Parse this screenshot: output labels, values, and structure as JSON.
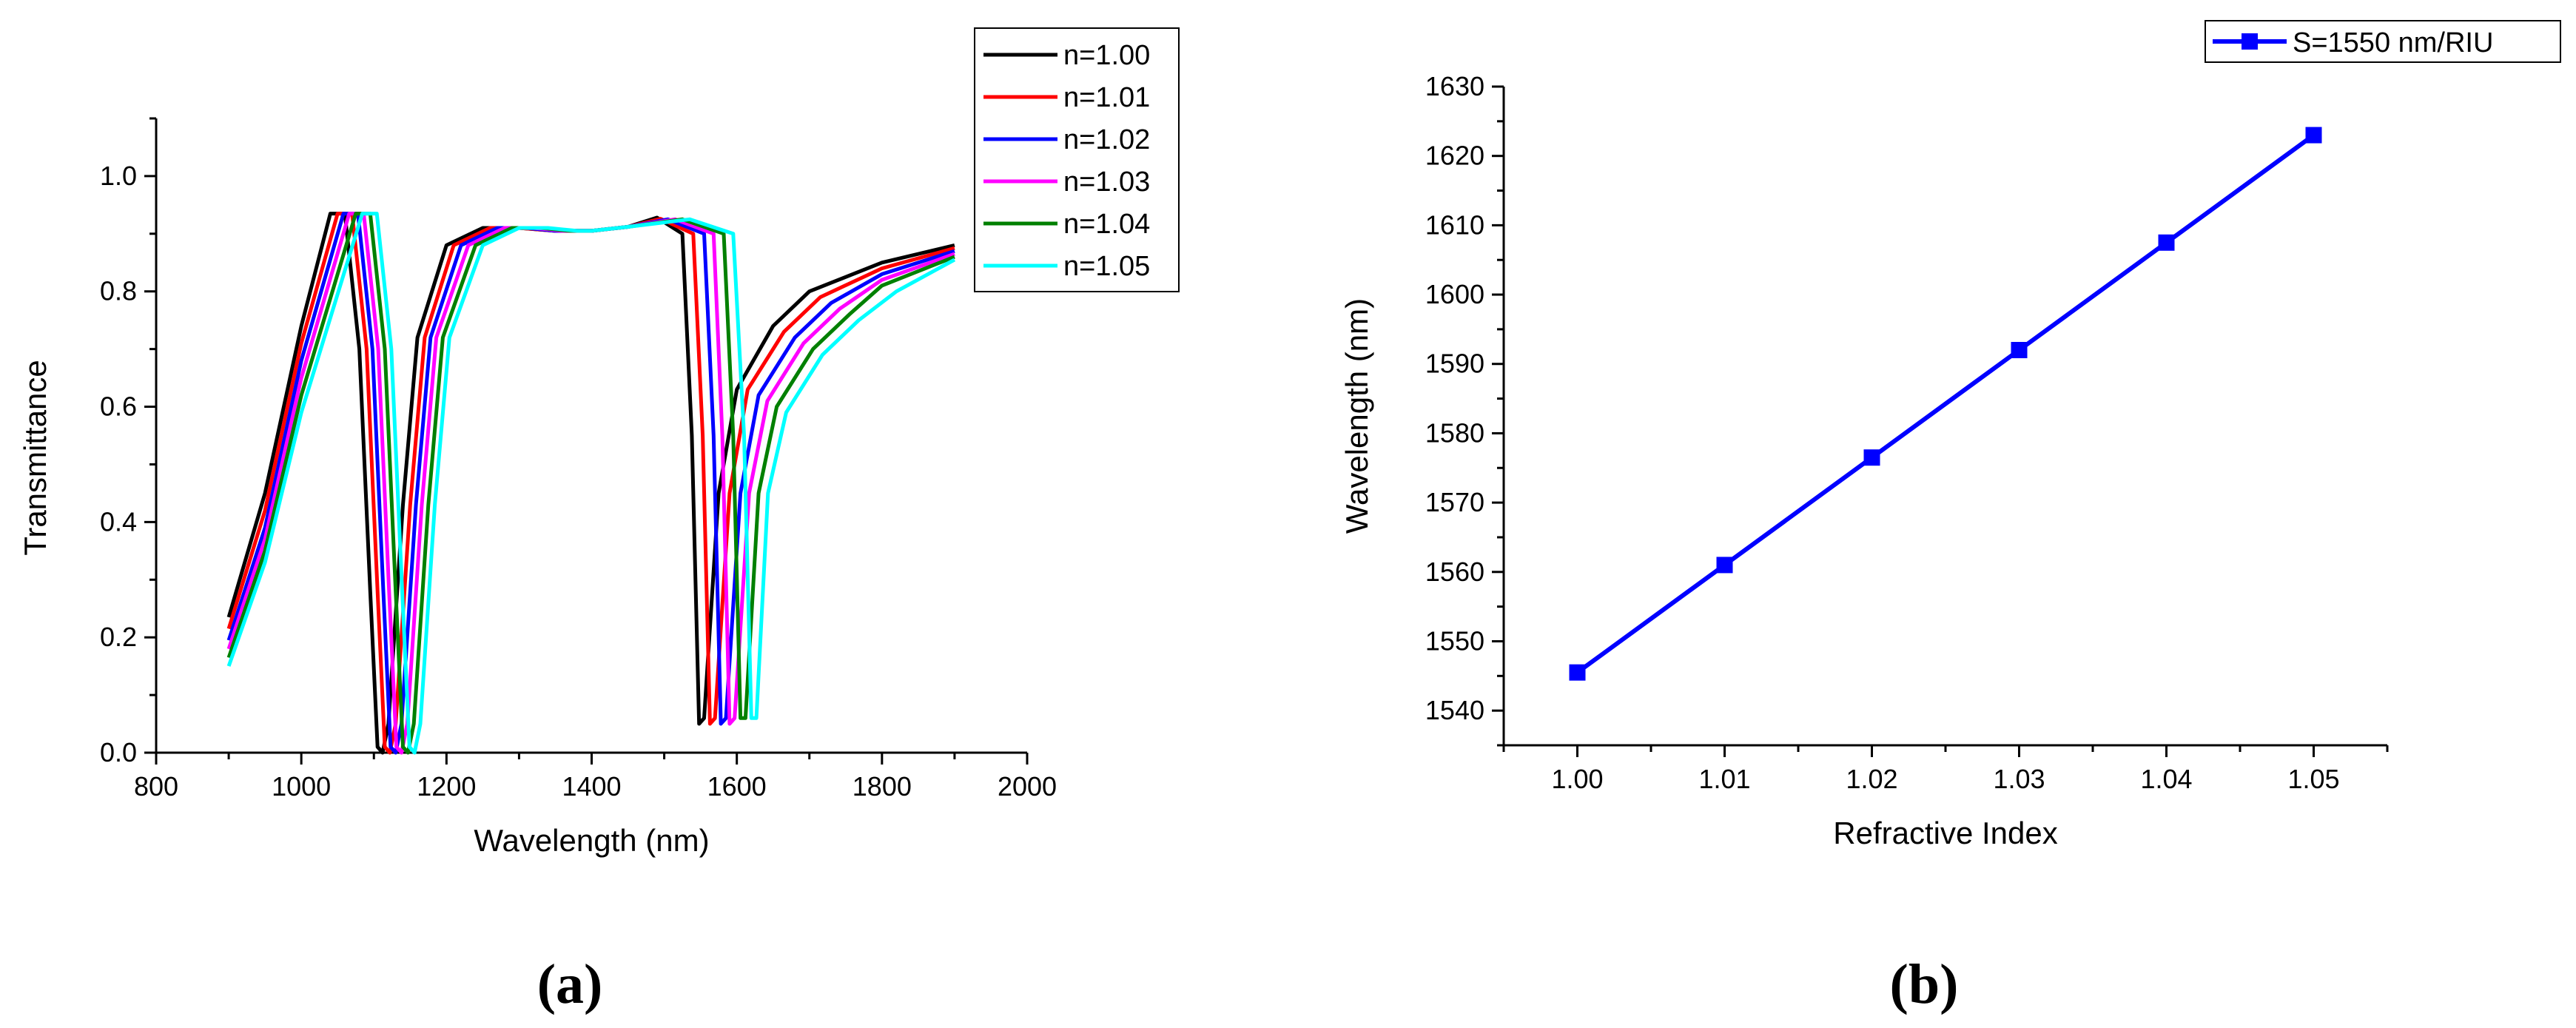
{
  "chart_data": [
    {
      "type": "line",
      "panel_label": "(a)",
      "xlabel": "Wavelength (nm)",
      "ylabel": "Transmittance",
      "xlim": [
        800,
        2000
      ],
      "ylim": [
        0,
        1.1
      ],
      "x_ticks": [
        "800",
        "1000",
        "1200",
        "1400",
        "1600",
        "1800",
        "2000"
      ],
      "y_ticks": [
        "0.0",
        "0.2",
        "0.4",
        "0.6",
        "0.8",
        "1.0"
      ],
      "legend_position": "top-right",
      "grid": false,
      "series": [
        {
          "name": "n=1.00",
          "color": "#000000",
          "points": [
            [
              900,
              0.235
            ],
            [
              950,
              0.45
            ],
            [
              1000,
              0.74
            ],
            [
              1040,
              0.935
            ],
            [
              1060,
              0.935
            ],
            [
              1080,
              0.7
            ],
            [
              1095,
              0.28
            ],
            [
              1105,
              0.01
            ],
            [
              1112,
              0.0
            ],
            [
              1120,
              0.05
            ],
            [
              1140,
              0.43
            ],
            [
              1160,
              0.72
            ],
            [
              1200,
              0.88
            ],
            [
              1250,
              0.91
            ],
            [
              1300,
              0.91
            ],
            [
              1350,
              0.905
            ],
            [
              1400,
              0.905
            ],
            [
              1450,
              0.912
            ],
            [
              1490,
              0.928
            ],
            [
              1525,
              0.9
            ],
            [
              1538,
              0.55
            ],
            [
              1548,
              0.05
            ],
            [
              1555,
              0.06
            ],
            [
              1575,
              0.45
            ],
            [
              1600,
              0.63
            ],
            [
              1650,
              0.74
            ],
            [
              1700,
              0.8
            ],
            [
              1800,
              0.85
            ],
            [
              1900,
              0.88
            ]
          ]
        },
        {
          "name": "n=1.01",
          "color": "#ff0000",
          "points": [
            [
              900,
              0.215
            ],
            [
              950,
              0.42
            ],
            [
              1000,
              0.71
            ],
            [
              1050,
              0.935
            ],
            [
              1070,
              0.935
            ],
            [
              1090,
              0.7
            ],
            [
              1105,
              0.28
            ],
            [
              1115,
              0.01
            ],
            [
              1122,
              0.0
            ],
            [
              1130,
              0.05
            ],
            [
              1150,
              0.43
            ],
            [
              1170,
              0.72
            ],
            [
              1210,
              0.88
            ],
            [
              1260,
              0.91
            ],
            [
              1300,
              0.91
            ],
            [
              1350,
              0.905
            ],
            [
              1400,
              0.905
            ],
            [
              1450,
              0.912
            ],
            [
              1495,
              0.926
            ],
            [
              1540,
              0.9
            ],
            [
              1553,
              0.55
            ],
            [
              1563,
              0.05
            ],
            [
              1570,
              0.06
            ],
            [
              1590,
              0.45
            ],
            [
              1615,
              0.63
            ],
            [
              1665,
              0.73
            ],
            [
              1715,
              0.79
            ],
            [
              1800,
              0.84
            ],
            [
              1900,
              0.875
            ]
          ]
        },
        {
          "name": "n=1.02",
          "color": "#0000ff",
          "points": [
            [
              900,
              0.195
            ],
            [
              950,
              0.39
            ],
            [
              1000,
              0.68
            ],
            [
              1058,
              0.935
            ],
            [
              1078,
              0.935
            ],
            [
              1098,
              0.7
            ],
            [
              1113,
              0.28
            ],
            [
              1123,
              0.01
            ],
            [
              1130,
              0.0
            ],
            [
              1138,
              0.05
            ],
            [
              1158,
              0.43
            ],
            [
              1178,
              0.72
            ],
            [
              1220,
              0.88
            ],
            [
              1270,
              0.91
            ],
            [
              1310,
              0.91
            ],
            [
              1350,
              0.905
            ],
            [
              1400,
              0.905
            ],
            [
              1450,
              0.912
            ],
            [
              1505,
              0.925
            ],
            [
              1555,
              0.9
            ],
            [
              1568,
              0.55
            ],
            [
              1578,
              0.05
            ],
            [
              1585,
              0.06
            ],
            [
              1605,
              0.45
            ],
            [
              1630,
              0.62
            ],
            [
              1680,
              0.72
            ],
            [
              1730,
              0.78
            ],
            [
              1800,
              0.83
            ],
            [
              1900,
              0.87
            ]
          ]
        },
        {
          "name": "n=1.03",
          "color": "#ff00ff",
          "points": [
            [
              900,
              0.18
            ],
            [
              950,
              0.37
            ],
            [
              1000,
              0.65
            ],
            [
              1066,
              0.935
            ],
            [
              1086,
              0.935
            ],
            [
              1106,
              0.7
            ],
            [
              1121,
              0.28
            ],
            [
              1131,
              0.01
            ],
            [
              1138,
              0.0
            ],
            [
              1146,
              0.05
            ],
            [
              1166,
              0.43
            ],
            [
              1186,
              0.72
            ],
            [
              1230,
              0.88
            ],
            [
              1280,
              0.91
            ],
            [
              1320,
              0.91
            ],
            [
              1360,
              0.905
            ],
            [
              1400,
              0.905
            ],
            [
              1450,
              0.912
            ],
            [
              1515,
              0.925
            ],
            [
              1568,
              0.9
            ],
            [
              1580,
              0.55
            ],
            [
              1590,
              0.05
            ],
            [
              1597,
              0.06
            ],
            [
              1617,
              0.45
            ],
            [
              1642,
              0.61
            ],
            [
              1692,
              0.71
            ],
            [
              1742,
              0.77
            ],
            [
              1800,
              0.82
            ],
            [
              1900,
              0.865
            ]
          ]
        },
        {
          "name": "n=1.04",
          "color": "#008000",
          "points": [
            [
              900,
              0.165
            ],
            [
              950,
              0.35
            ],
            [
              1000,
              0.62
            ],
            [
              1075,
              0.935
            ],
            [
              1095,
              0.935
            ],
            [
              1115,
              0.7
            ],
            [
              1130,
              0.28
            ],
            [
              1140,
              0.01
            ],
            [
              1147,
              0.0
            ],
            [
              1155,
              0.05
            ],
            [
              1175,
              0.43
            ],
            [
              1195,
              0.72
            ],
            [
              1240,
              0.88
            ],
            [
              1290,
              0.91
            ],
            [
              1330,
              0.91
            ],
            [
              1370,
              0.905
            ],
            [
              1400,
              0.905
            ],
            [
              1450,
              0.912
            ],
            [
              1525,
              0.925
            ],
            [
              1582,
              0.9
            ],
            [
              1595,
              0.55
            ],
            [
              1605,
              0.06
            ],
            [
              1612,
              0.06
            ],
            [
              1630,
              0.45
            ],
            [
              1655,
              0.6
            ],
            [
              1705,
              0.7
            ],
            [
              1755,
              0.76
            ],
            [
              1800,
              0.81
            ],
            [
              1900,
              0.86
            ]
          ]
        },
        {
          "name": "n=1.05",
          "color": "#00ffff",
          "points": [
            [
              900,
              0.15
            ],
            [
              950,
              0.33
            ],
            [
              1000,
              0.59
            ],
            [
              1084,
              0.935
            ],
            [
              1104,
              0.935
            ],
            [
              1124,
              0.7
            ],
            [
              1139,
              0.28
            ],
            [
              1149,
              0.01
            ],
            [
              1156,
              0.0
            ],
            [
              1164,
              0.05
            ],
            [
              1184,
              0.43
            ],
            [
              1204,
              0.72
            ],
            [
              1250,
              0.88
            ],
            [
              1300,
              0.91
            ],
            [
              1340,
              0.91
            ],
            [
              1380,
              0.905
            ],
            [
              1400,
              0.905
            ],
            [
              1450,
              0.912
            ],
            [
              1535,
              0.925
            ],
            [
              1595,
              0.9
            ],
            [
              1610,
              0.55
            ],
            [
              1620,
              0.06
            ],
            [
              1627,
              0.06
            ],
            [
              1643,
              0.45
            ],
            [
              1668,
              0.59
            ],
            [
              1718,
              0.69
            ],
            [
              1768,
              0.75
            ],
            [
              1820,
              0.8
            ],
            [
              1900,
              0.855
            ]
          ]
        }
      ]
    },
    {
      "type": "line",
      "panel_label": "(b)",
      "xlabel": "Refractive Index",
      "ylabel": "Wavelength (nm)",
      "xlim": [
        0.995,
        1.055
      ],
      "ylim": [
        1535,
        1630
      ],
      "x_ticks": [
        "1.00",
        "1.01",
        "1.02",
        "1.03",
        "1.04",
        "1.05"
      ],
      "y_ticks": [
        "1540",
        "1550",
        "1560",
        "1570",
        "1580",
        "1590",
        "1600",
        "1610",
        "1620",
        "1630"
      ],
      "legend_position": "top-right",
      "grid": false,
      "series": [
        {
          "name": "S=1550 nm/RIU",
          "color": "#0000ff",
          "marker": "square",
          "x": [
            1.0,
            1.01,
            1.02,
            1.03,
            1.04,
            1.05
          ],
          "y": [
            1545.5,
            1561,
            1576.5,
            1592,
            1607.5,
            1623
          ]
        }
      ]
    }
  ]
}
